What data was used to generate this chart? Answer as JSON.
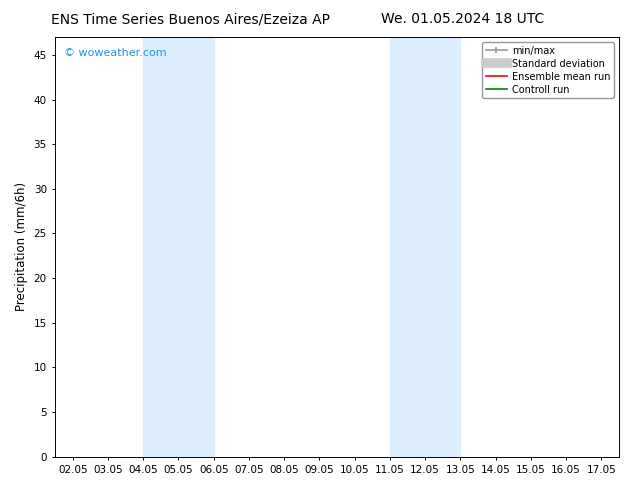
{
  "title_left": "ENS Time Series Buenos Aires/Ezeiza AP",
  "title_right": "We. 01.05.2024 18 UTC",
  "ylabel": "Precipitation (mm/6h)",
  "x_ticks": [
    "02.05",
    "03.05",
    "04.05",
    "05.05",
    "06.05",
    "07.05",
    "08.05",
    "09.05",
    "10.05",
    "11.05",
    "12.05",
    "13.05",
    "14.05",
    "15.05",
    "16.05",
    "17.05"
  ],
  "x_tick_positions": [
    0,
    1,
    2,
    3,
    4,
    5,
    6,
    7,
    8,
    9,
    10,
    11,
    12,
    13,
    14,
    15
  ],
  "ylim": [
    0,
    47
  ],
  "yticks": [
    0,
    5,
    10,
    15,
    20,
    25,
    30,
    35,
    40,
    45
  ],
  "shade_regions": [
    {
      "x_start": 2,
      "x_end": 4,
      "color": "#ddeeff"
    },
    {
      "x_start": 9,
      "x_end": 11,
      "color": "#ddeeff"
    }
  ],
  "watermark": "© woweather.com",
  "watermark_color": "#1E90FF",
  "bg_color": "#ffffff",
  "plot_bg_color": "#ffffff",
  "legend_labels": [
    "min/max",
    "Standard deviation",
    "Ensemble mean run",
    "Controll run"
  ],
  "legend_colors": [
    "#999999",
    "#cccccc",
    "#ff0000",
    "#008000"
  ],
  "title_fontsize": 10,
  "tick_fontsize": 7.5,
  "ylabel_fontsize": 8.5,
  "legend_fontsize": 7,
  "watermark_fontsize": 8
}
